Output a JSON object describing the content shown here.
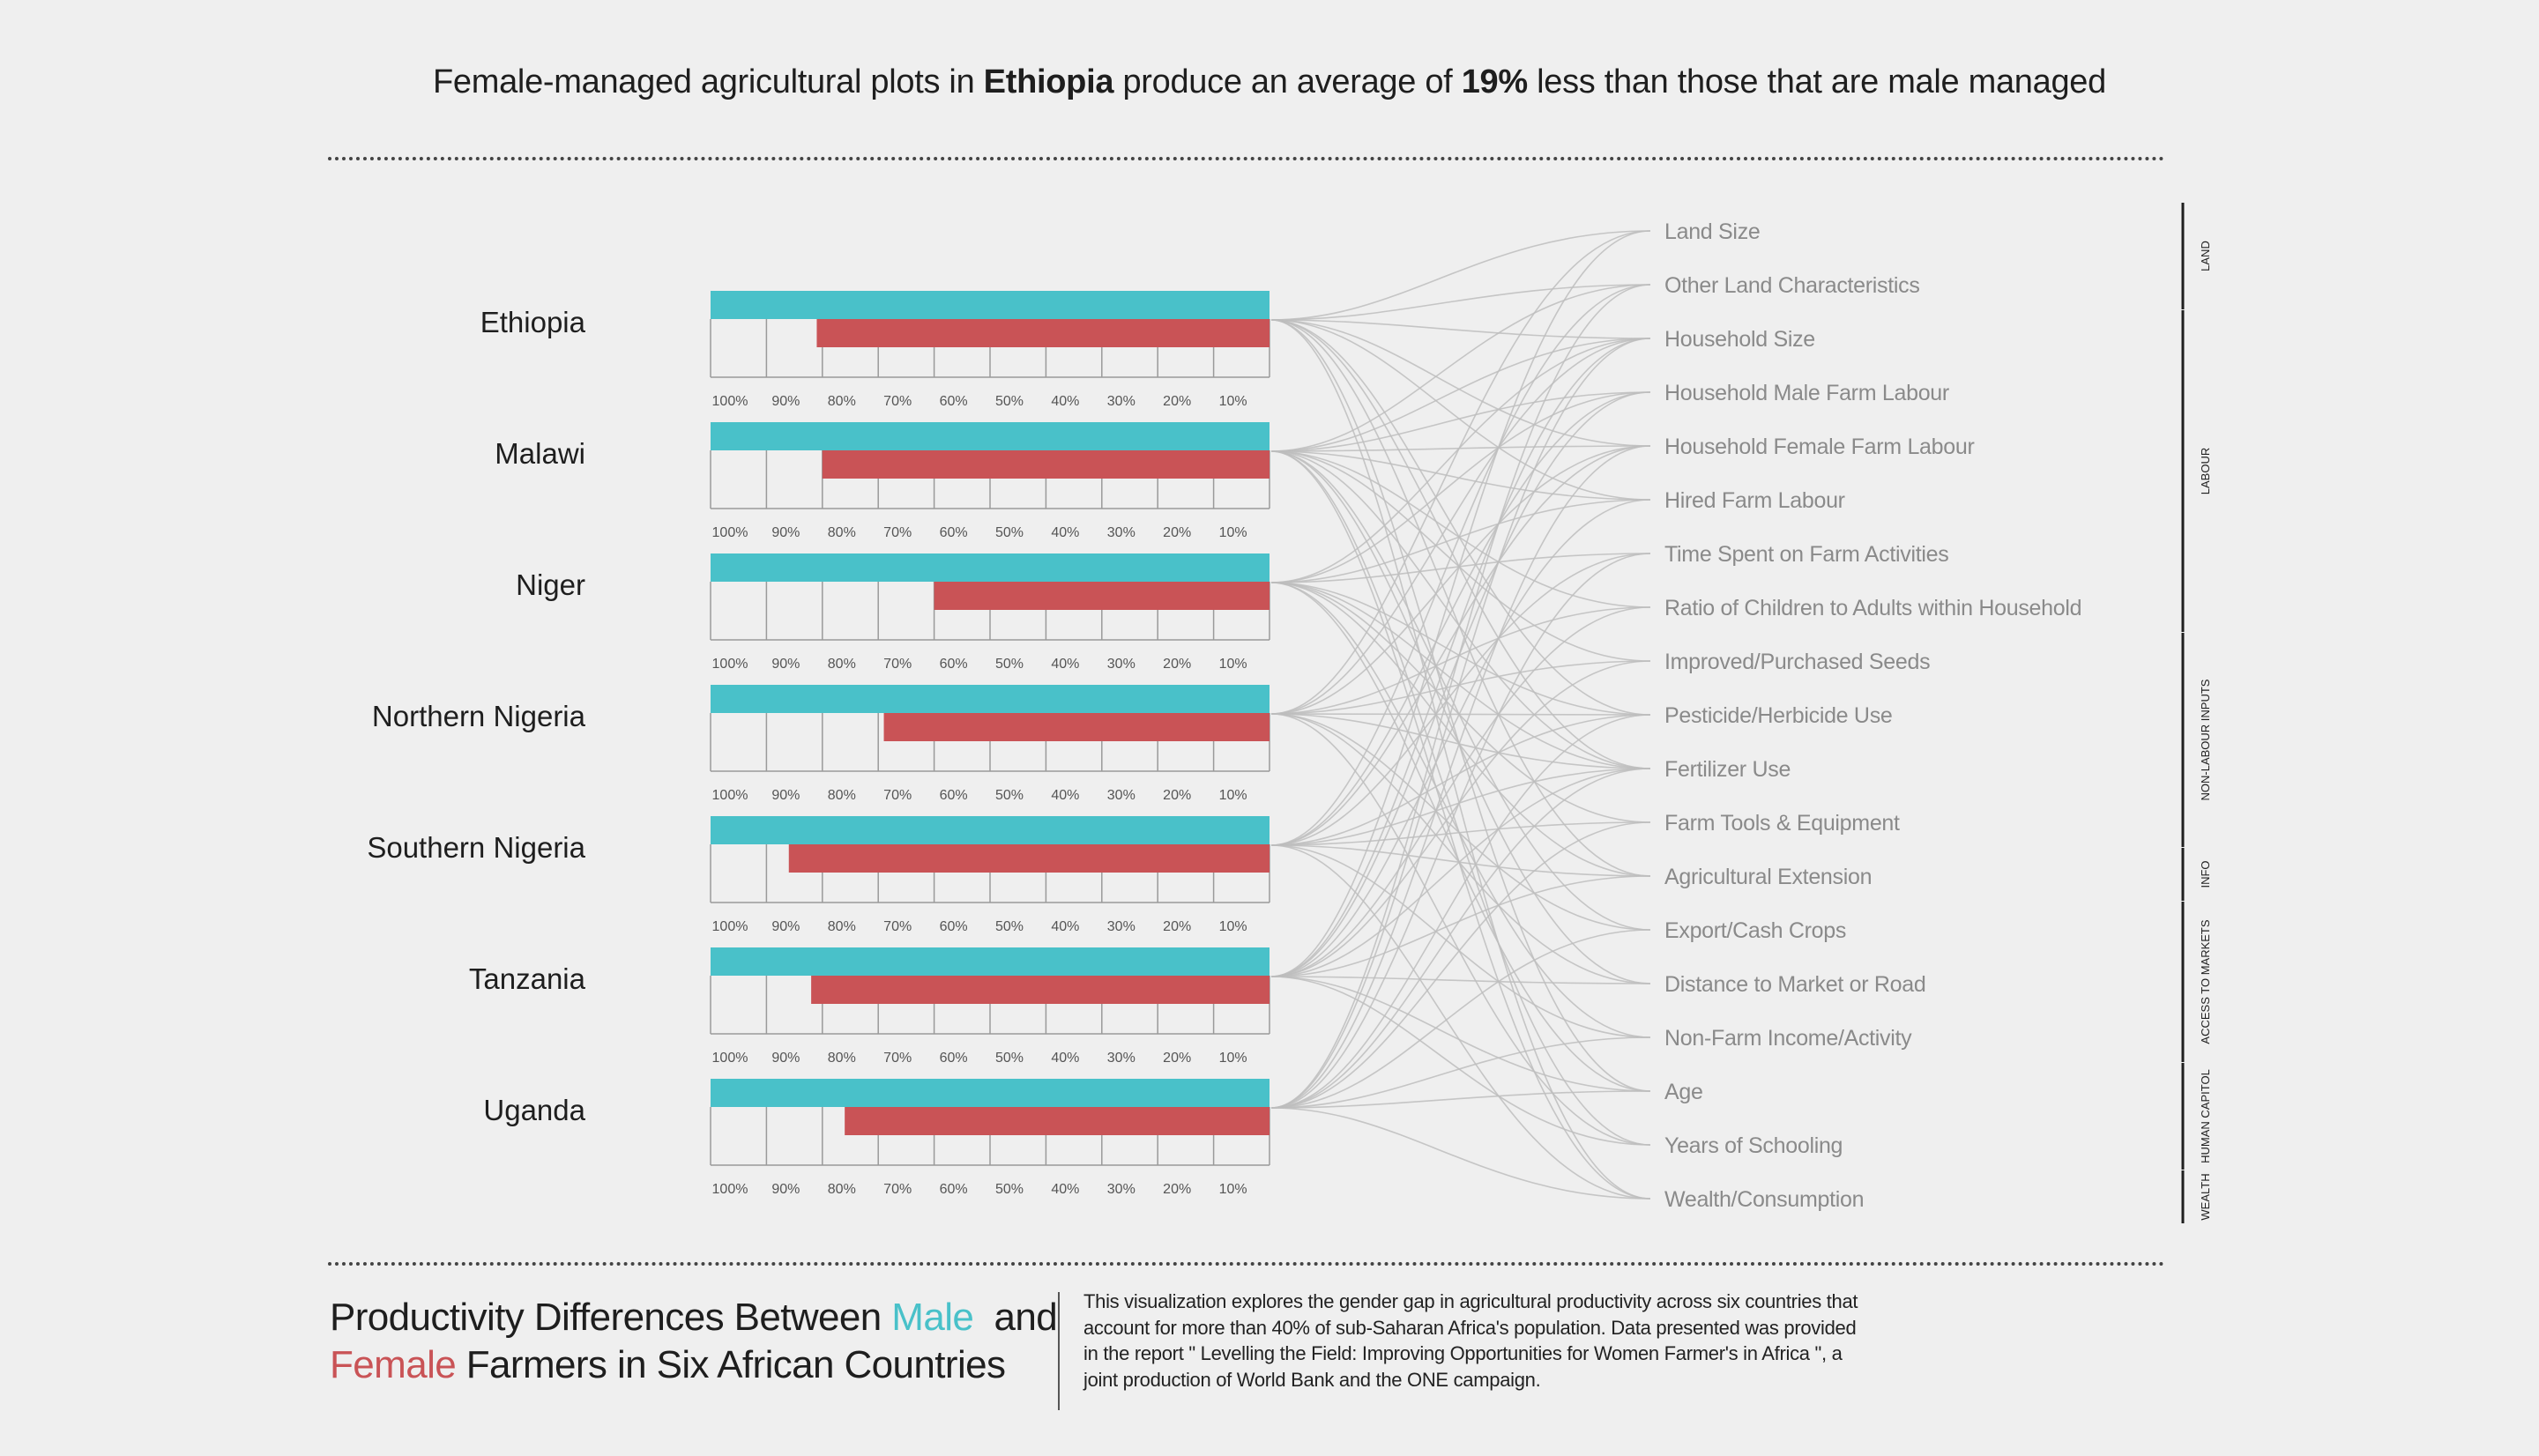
{
  "headline": {
    "part1": "Female-managed agricultural plots in",
    "country": "Ethiopia",
    "part2": "produce an average of",
    "percent": "19%",
    "part3": "less than those that are male managed"
  },
  "footer": {
    "title_part1": "Productivity Differences Between",
    "male_word": "Male",
    "and_word": "and",
    "female_word": "Female",
    "title_part2": "Farmers in Six African Countries",
    "description": "This visualization explores the gender gap in agricultural productivity across six countries that account for more than 40% of sub-Saharan Africa's population. Data presented was provided in the report \" Levelling the Field: Improving Opportunities for Women Farmer's in Africa \", a joint production of World Bank and the ONE campaign."
  },
  "colors": {
    "male": "#49c1c9",
    "female": "#c95356",
    "links": "#bdbdbd",
    "factor_text": "#8a8a8a"
  },
  "chart_data": {
    "type": "bar",
    "orientation": "horizontal",
    "axis_direction": "reversed",
    "xlim": [
      0,
      100
    ],
    "tick_labels": [
      "100%",
      "90%",
      "80%",
      "70%",
      "60%",
      "50%",
      "40%",
      "30%",
      "20%",
      "10%"
    ],
    "categories": [
      "Ethiopia",
      "Malawi",
      "Niger",
      "Northern Nigeria",
      "Southern Nigeria",
      "Tanzania",
      "Uganda"
    ],
    "series": [
      {
        "name": "Male",
        "color": "#49c1c9",
        "values": [
          100,
          100,
          100,
          100,
          100,
          100,
          100
        ]
      },
      {
        "name": "Female",
        "color": "#c95356",
        "values": [
          81,
          80,
          60,
          69,
          86,
          82,
          76
        ]
      }
    ],
    "factors": [
      "Land Size",
      "Other Land Characteristics",
      "Household Size",
      "Household Male Farm Labour",
      "Household Female Farm Labour",
      "Hired Farm Labour",
      "Time Spent on Farm Activities",
      "Ratio of Children to Adults within Household",
      "Improved/Purchased Seeds",
      "Pesticide/Herbicide Use",
      "Fertilizer Use",
      "Farm Tools & Equipment",
      "Agricultural Extension",
      "Export/Cash Crops",
      "Distance to Market or Road",
      "Non-Farm Income/Activity",
      "Age",
      "Years of Schooling",
      "Wealth/Consumption"
    ],
    "factor_groups": [
      {
        "label": "LAND",
        "first": 0,
        "last": 1
      },
      {
        "label": "LABOUR",
        "first": 2,
        "last": 7
      },
      {
        "label": "NON-LABOUR INPUTS",
        "first": 8,
        "last": 11
      },
      {
        "label": "INFO",
        "first": 12,
        "last": 12
      },
      {
        "label": "ACCESS TO MARKETS",
        "first": 13,
        "last": 15
      },
      {
        "label": "HUMAN CAPITOL",
        "first": 16,
        "last": 17
      },
      {
        "label": "WEALTH",
        "first": 18,
        "last": 18
      }
    ],
    "links": [
      [
        0,
        1,
        2,
        4,
        5,
        9,
        10,
        12,
        16,
        18
      ],
      [
        1,
        2,
        3,
        4,
        5,
        7,
        8,
        10,
        13,
        14,
        17,
        18
      ],
      [
        2,
        3,
        5,
        6,
        9,
        10,
        11,
        12,
        15,
        16
      ],
      [
        0,
        2,
        4,
        7,
        8,
        9,
        10,
        13,
        14,
        17
      ],
      [
        1,
        3,
        4,
        6,
        9,
        10,
        11,
        12,
        15,
        18
      ],
      [
        0,
        2,
        3,
        5,
        7,
        8,
        10,
        12,
        14,
        16,
        17
      ],
      [
        1,
        2,
        4,
        6,
        9,
        10,
        11,
        13,
        15,
        16,
        18
      ]
    ]
  }
}
